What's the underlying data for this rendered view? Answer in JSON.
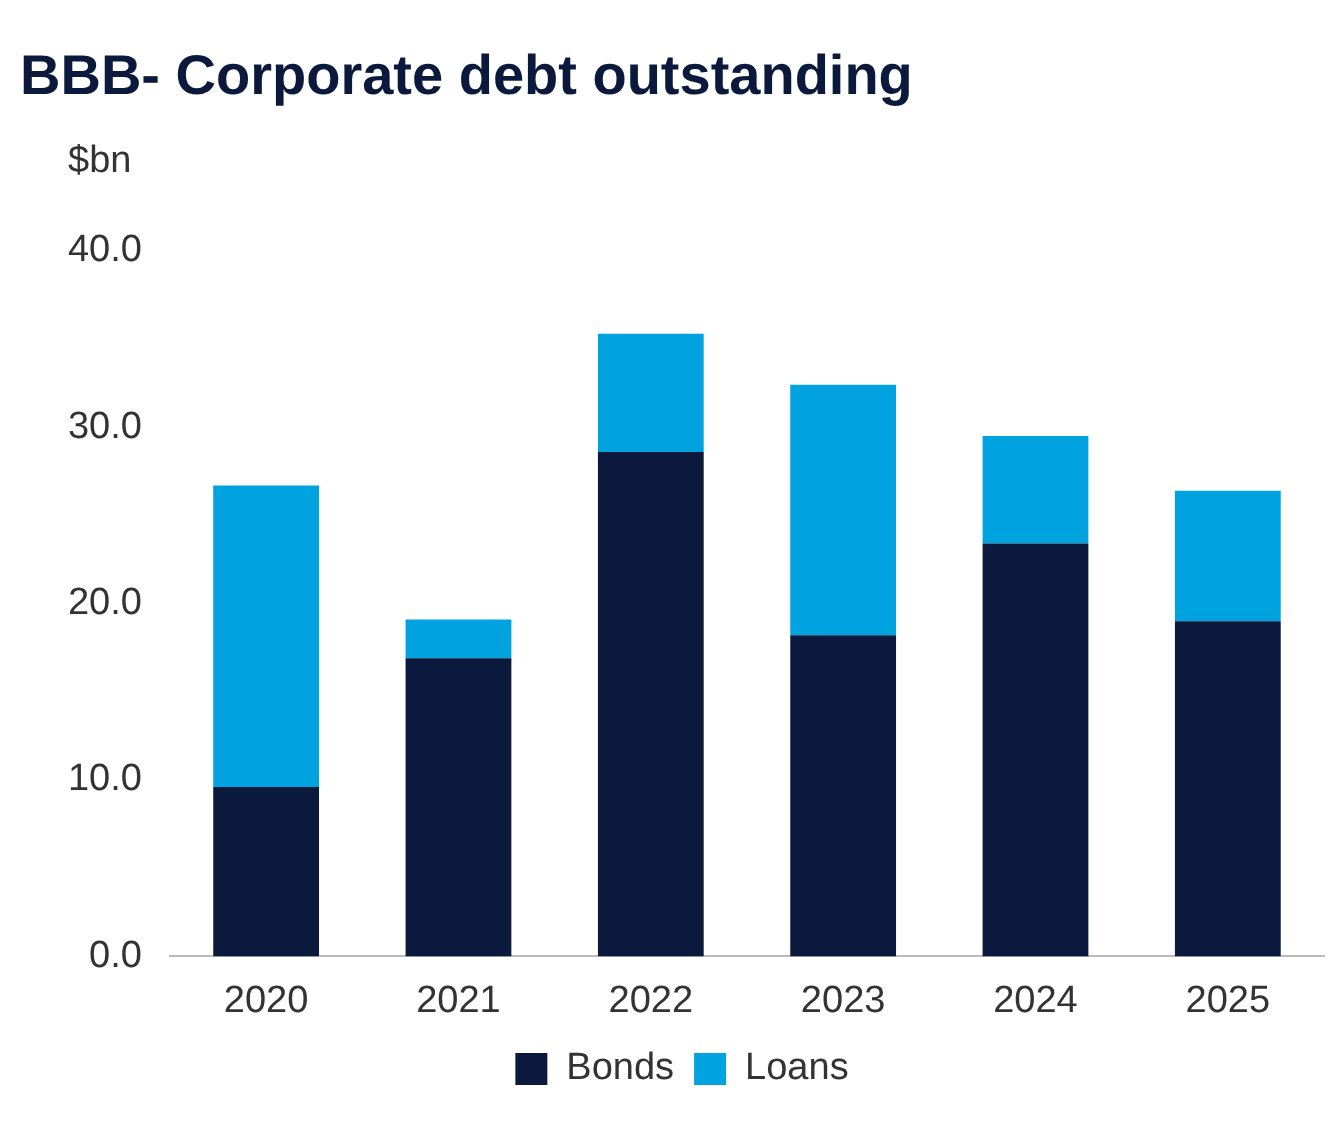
{
  "chart_data": {
    "type": "bar",
    "title": "BBB- Corporate debt outstanding",
    "ylabel": "$bn",
    "categories": [
      "2020",
      "2021",
      "2022",
      "2023",
      "2024",
      "2025"
    ],
    "stacked": true,
    "series": [
      {
        "name": "Bonds",
        "color": "#0b1a3c",
        "values": [
          9.6,
          16.9,
          28.6,
          18.2,
          23.4,
          19.0
        ]
      },
      {
        "name": "Loans",
        "color": "#00a3e0",
        "values": [
          17.1,
          2.2,
          6.7,
          14.2,
          6.1,
          7.4
        ]
      }
    ],
    "ylim": [
      0,
      40
    ],
    "yticks": [
      {
        "value": 0,
        "label": "0.0"
      },
      {
        "value": 10,
        "label": "10.0"
      },
      {
        "value": 20,
        "label": "20.0"
      },
      {
        "value": 30,
        "label": "30.0"
      },
      {
        "value": 40,
        "label": "40.0"
      }
    ],
    "grid": false,
    "legend": "bottom"
  }
}
